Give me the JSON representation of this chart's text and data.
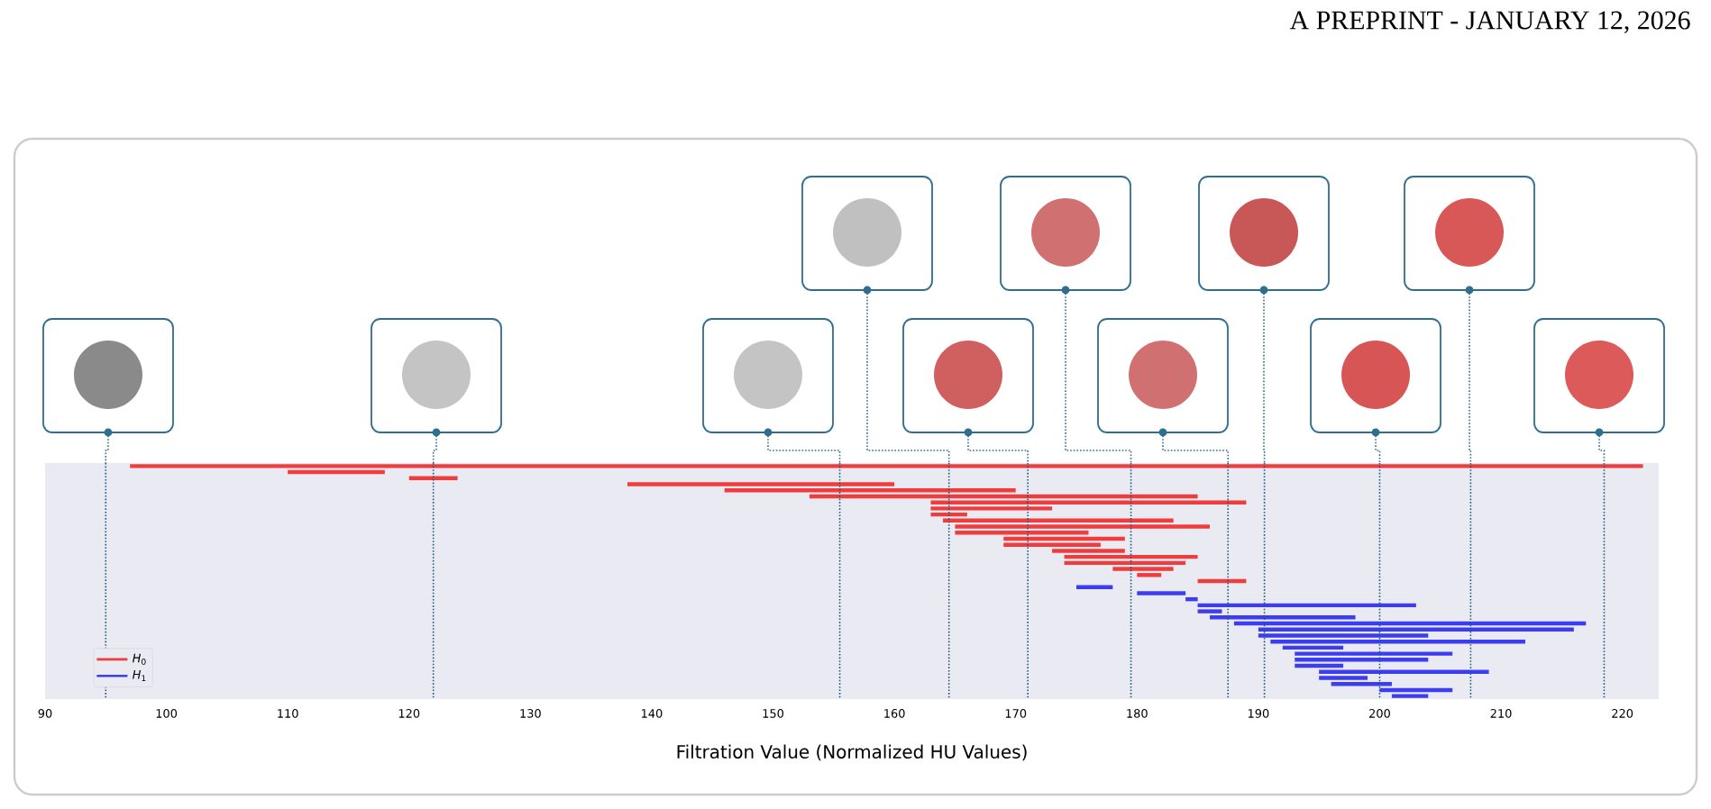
{
  "chart_data": {
    "type": "bar",
    "orientation": "horizontal",
    "xlabel": "Filtration Value (Normalized HU Values)",
    "annotations": [
      "A PREPRINT - JANUARY 12, 2026"
    ],
    "categories": [
      null,
      null,
      null,
      null,
      null,
      null,
      null,
      null,
      null,
      null,
      null,
      null,
      null,
      null,
      null,
      null,
      null,
      null,
      null,
      null,
      null,
      null,
      null,
      null,
      null,
      null,
      null,
      null,
      null,
      null,
      null,
      null,
      null,
      null,
      null,
      null,
      null,
      null,
      null
    ],
    "series": [
      {
        "name": "*H*$_{0}$",
        "color": "#f03c3c",
        "base": [
          97,
          110,
          120,
          138,
          146,
          153,
          163,
          163,
          163,
          164,
          165,
          165,
          169,
          169,
          173,
          174,
          174,
          178,
          180,
          185,
          null,
          null,
          null,
          null,
          null,
          null,
          null,
          null,
          null,
          null,
          null,
          null,
          null,
          null,
          null,
          null,
          null,
          null,
          null
        ],
        "values": [
          124.7,
          8,
          4,
          22,
          24,
          32,
          26,
          10,
          3,
          19,
          21,
          11,
          10,
          8,
          6,
          11,
          10,
          5,
          2,
          4,
          null,
          null,
          null,
          null,
          null,
          null,
          null,
          null,
          null,
          null,
          null,
          null,
          null,
          null,
          null,
          null,
          null,
          null,
          null
        ]
      },
      {
        "name": "*H*$_{1}$",
        "color": "#3c3cf0",
        "base": [
          null,
          null,
          null,
          null,
          null,
          null,
          null,
          null,
          null,
          null,
          null,
          null,
          null,
          null,
          null,
          null,
          null,
          null,
          null,
          null,
          175,
          180,
          184,
          185,
          185,
          186,
          188,
          190,
          190,
          191,
          192,
          193,
          193,
          193,
          195,
          195,
          196,
          200,
          201
        ],
        "values": [
          null,
          null,
          null,
          null,
          null,
          null,
          null,
          null,
          null,
          null,
          null,
          null,
          null,
          null,
          null,
          null,
          null,
          null,
          null,
          null,
          3,
          4,
          1,
          18,
          2,
          12,
          29,
          26,
          14,
          21,
          5,
          13,
          11,
          4,
          14,
          4,
          5,
          6,
          3
        ]
      }
    ],
    "xlim": [
      90,
      223
    ],
    "xticks": [
      90,
      100,
      110,
      120,
      130,
      140,
      150,
      160,
      170,
      180,
      190,
      200,
      210,
      220
    ],
    "ref_lines": [
      {
        "axis": "x",
        "value": 95,
        "color": "#1f5a7a",
        "line_style": "dotted"
      },
      {
        "axis": "x",
        "value": 122,
        "color": "#1f5a7a",
        "line_style": "dotted"
      },
      {
        "axis": "x",
        "value": 155.5,
        "color": "#1f5a7a",
        "line_style": "dotted"
      },
      {
        "axis": "x",
        "value": 164.5,
        "color": "#1f5a7a",
        "line_style": "dotted"
      },
      {
        "axis": "x",
        "value": 171,
        "color": "#1f5a7a",
        "line_style": "dotted"
      },
      {
        "axis": "x",
        "value": 179.5,
        "color": "#1f5a7a",
        "line_style": "dotted"
      },
      {
        "axis": "x",
        "value": 187.5,
        "color": "#1f5a7a",
        "line_style": "dotted"
      },
      {
        "axis": "x",
        "value": 190.5,
        "color": "#1f5a7a",
        "line_style": "dotted"
      },
      {
        "axis": "x",
        "value": 200,
        "color": "#1f5a7a",
        "line_style": "dotted"
      },
      {
        "axis": "x",
        "value": 207.5,
        "color": "#1f5a7a",
        "line_style": "dotted"
      },
      {
        "axis": "x",
        "value": 218.5,
        "color": "#1f5a7a",
        "line_style": "dotted"
      }
    ],
    "legend": "bottom left",
    "tick_labels": "x"
  }
}
